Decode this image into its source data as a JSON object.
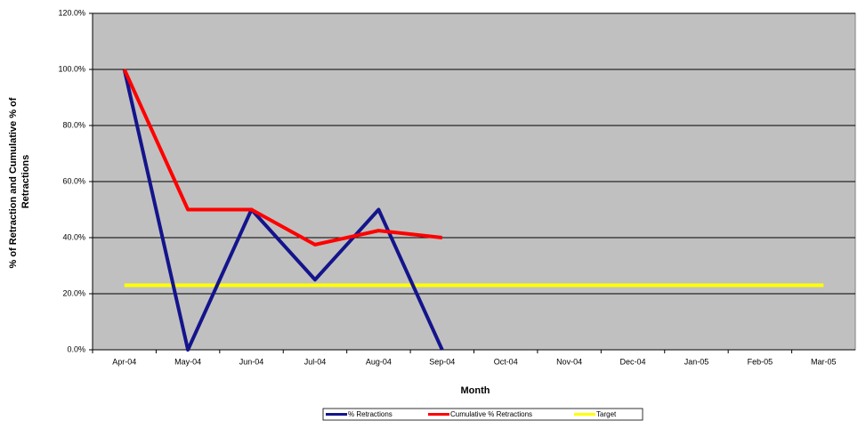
{
  "chart_data": {
    "type": "line",
    "xlabel": "Month",
    "ylabel": [
      "% of Retraction and Cumulative % of",
      "Retractions"
    ],
    "categories": [
      "Apr-04",
      "May-04",
      "Jun-04",
      "Jul-04",
      "Aug-04",
      "Sep-04",
      "Oct-04",
      "Nov-04",
      "Dec-04",
      "Jan-05",
      "Feb-05",
      "Mar-05"
    ],
    "series": [
      {
        "name": "% Retractions",
        "color": "#14148c",
        "values": [
          100,
          0,
          50,
          25,
          50,
          0,
          null,
          null,
          null,
          null,
          null,
          null
        ]
      },
      {
        "name": "Cumulative % Retractions",
        "color": "#ff0000",
        "values": [
          100,
          50,
          50,
          37.5,
          42.5,
          40,
          null,
          null,
          null,
          null,
          null,
          null
        ]
      },
      {
        "name": "Target",
        "color": "#ffff00",
        "values": [
          23,
          23,
          23,
          23,
          23,
          23,
          23,
          23,
          23,
          23,
          23,
          23
        ]
      }
    ],
    "ylim": [
      0,
      120
    ],
    "yticks": [
      {
        "value": 0,
        "label": "0.0%"
      },
      {
        "value": 20,
        "label": "20.0%"
      },
      {
        "value": 40,
        "label": "40.0%"
      },
      {
        "value": 60,
        "label": "60.0%"
      },
      {
        "value": 80,
        "label": "80.0%"
      },
      {
        "value": 100,
        "label": "100.0%"
      },
      {
        "value": 120,
        "label": "120.0%"
      }
    ],
    "grid": true,
    "legend": "bottom"
  }
}
